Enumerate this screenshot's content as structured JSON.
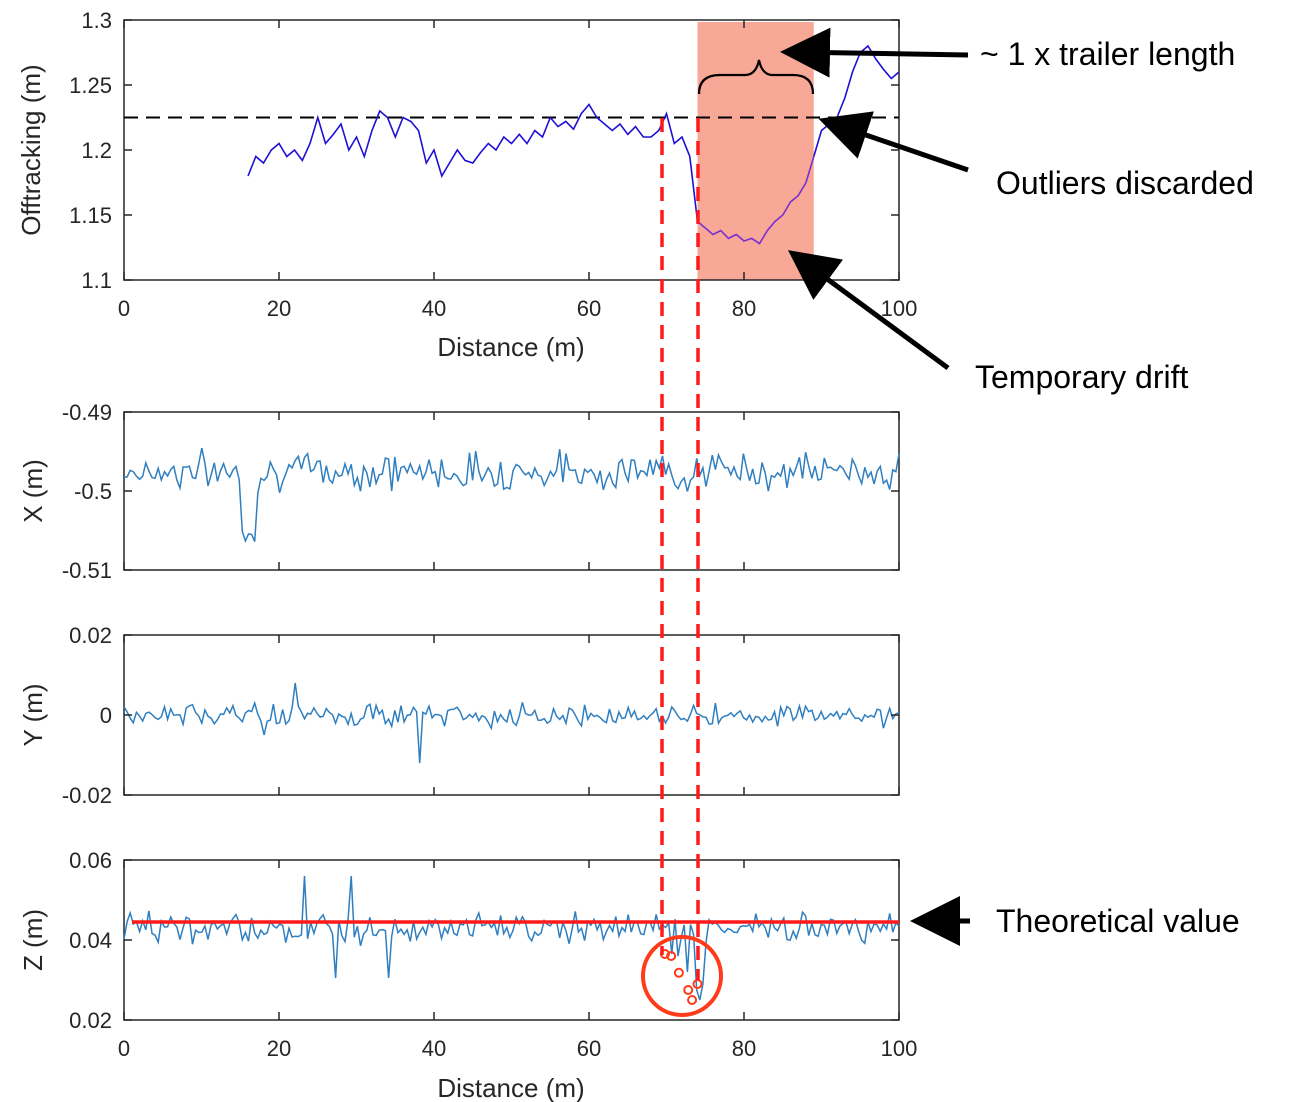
{
  "colors": {
    "offtracking_line": "#1f10d6",
    "offtracking_drift_line": "#7a2fd0",
    "xyz_line": "#2f7fc0",
    "theoretical_line": "#ff1a1a",
    "guide_lines": "#ff1a1a",
    "highlight": "#f7a896",
    "outlier_markers": "#ff3b1a",
    "axis": "#262626"
  },
  "annotations": {
    "trailer_length": "~ 1 x trailer length",
    "outliers": "Outliers discarded",
    "drift": "Temporary drift",
    "theoretical": "Theoretical value"
  },
  "chart_data": [
    {
      "type": "line",
      "name": "offtracking",
      "ylabel": "Offtracking (m)",
      "xlabel": "Distance (m)",
      "xlim": [
        0,
        100
      ],
      "ylim": [
        1.1,
        1.3
      ],
      "xticks": [
        0,
        20,
        40,
        60,
        80,
        100
      ],
      "xtick_labels": [
        "0",
        "20",
        "40",
        "60",
        "80",
        "100"
      ],
      "yticks": [
        1.1,
        1.15,
        1.2,
        1.25,
        1.3
      ],
      "ytick_labels": [
        "1.1",
        "1.15",
        "1.2",
        "1.25",
        "1.3"
      ],
      "reference_line": 1.225,
      "highlight_x": [
        74,
        89
      ],
      "x": [
        16,
        17,
        18,
        19,
        20,
        21,
        22,
        23,
        24,
        25,
        26,
        27,
        28,
        29,
        30,
        31,
        32,
        33,
        34,
        35,
        36,
        37,
        38,
        39,
        40,
        41,
        42,
        43,
        44,
        45,
        46,
        47,
        48,
        49,
        50,
        51,
        52,
        53,
        54,
        55,
        56,
        57,
        58,
        59,
        60,
        61,
        62,
        63,
        64,
        65,
        66,
        67,
        68,
        69,
        70,
        71,
        72,
        73,
        74,
        75,
        76,
        77,
        78,
        79,
        80,
        81,
        82,
        83,
        84,
        85,
        86,
        87,
        88,
        89,
        90,
        91,
        92,
        93,
        94,
        95,
        96,
        97,
        98,
        99,
        100
      ],
      "y": [
        1.18,
        1.195,
        1.19,
        1.2,
        1.205,
        1.195,
        1.2,
        1.192,
        1.205,
        1.225,
        1.205,
        1.212,
        1.22,
        1.2,
        1.21,
        1.195,
        1.215,
        1.23,
        1.225,
        1.21,
        1.225,
        1.222,
        1.215,
        1.19,
        1.2,
        1.18,
        1.19,
        1.2,
        1.192,
        1.19,
        1.198,
        1.205,
        1.2,
        1.21,
        1.205,
        1.212,
        1.205,
        1.215,
        1.21,
        1.225,
        1.218,
        1.222,
        1.216,
        1.228,
        1.235,
        1.225,
        1.22,
        1.215,
        1.22,
        1.212,
        1.218,
        1.21,
        1.21,
        1.215,
        1.228,
        1.205,
        1.21,
        1.195,
        1.145,
        1.14,
        1.135,
        1.138,
        1.132,
        1.135,
        1.13,
        1.132,
        1.128,
        1.138,
        1.145,
        1.15,
        1.16,
        1.165,
        1.175,
        1.195,
        1.215,
        1.22,
        1.225,
        1.24,
        1.26,
        1.275,
        1.28,
        1.27,
        1.262,
        1.255,
        1.26
      ]
    },
    {
      "type": "line",
      "name": "X",
      "ylabel": "X (m)",
      "xlim": [
        0,
        100
      ],
      "ylim": [
        -0.51,
        -0.49
      ],
      "xticks": [
        0,
        20,
        40,
        60,
        80,
        100
      ],
      "yticks": [
        -0.51,
        -0.5,
        -0.49
      ],
      "ytick_labels": [
        "-0.51",
        "-0.5",
        "-0.49"
      ]
    },
    {
      "type": "line",
      "name": "Y",
      "ylabel": "Y (m)",
      "xlim": [
        0,
        100
      ],
      "ylim": [
        -0.02,
        0.02
      ],
      "xticks": [
        0,
        20,
        40,
        60,
        80,
        100
      ],
      "yticks": [
        -0.02,
        0,
        0.02
      ],
      "ytick_labels": [
        "-0.02",
        "0",
        "0.02"
      ]
    },
    {
      "type": "line",
      "name": "Z",
      "ylabel": "Z (m)",
      "xlabel": "Distance (m)",
      "xlim": [
        0,
        100
      ],
      "ylim": [
        0.02,
        0.06
      ],
      "xticks": [
        0,
        20,
        40,
        60,
        80,
        100
      ],
      "xtick_labels": [
        "0",
        "20",
        "40",
        "60",
        "80",
        "100"
      ],
      "yticks": [
        0.02,
        0.04,
        0.06
      ],
      "ytick_labels": [
        "0.02",
        "0.04",
        "0.06"
      ],
      "theoretical_value": 0.0445,
      "outliers": [
        [
          69.8,
          0.0365
        ],
        [
          70.6,
          0.036
        ],
        [
          71.6,
          0.0318
        ],
        [
          72.8,
          0.0275
        ],
        [
          73.3,
          0.025
        ],
        [
          74,
          0.029
        ]
      ]
    }
  ]
}
